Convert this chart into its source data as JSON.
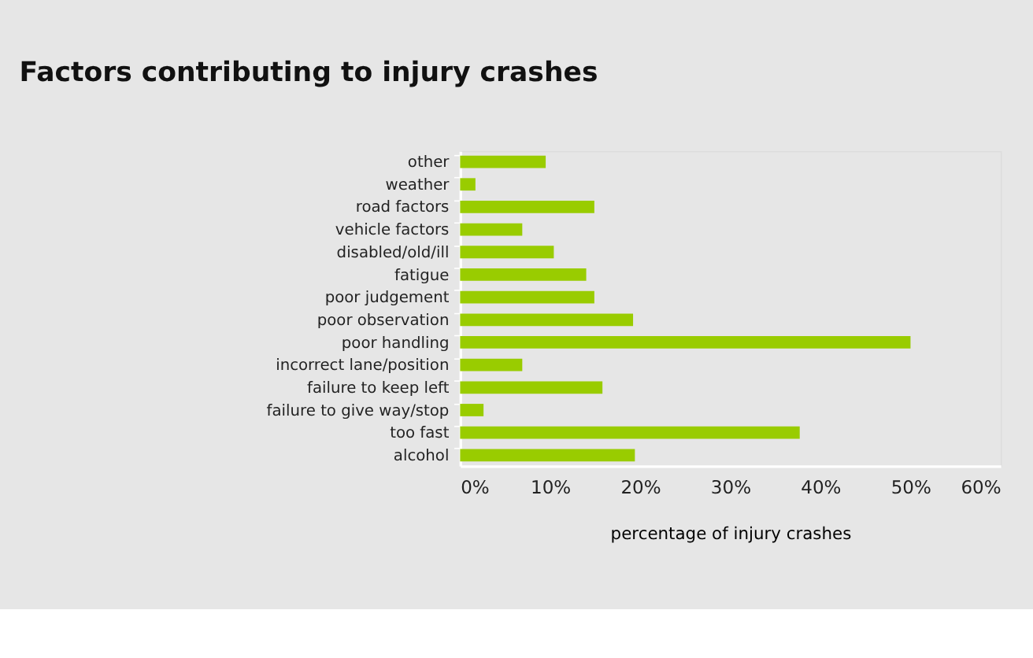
{
  "chart_data": {
    "type": "bar",
    "orientation": "horizontal",
    "title": "Factors contributing to injury crashes",
    "xlabel": "percentage of injury crashes",
    "categories": [
      "other",
      "weather",
      "road factors",
      "vehicle factors",
      "disabled/old/ill",
      "fatigue",
      "poor judgement",
      "poor observation",
      "poor handling",
      "incorrect lane/position",
      "failure to keep left",
      "failure to give way/stop",
      "too fast",
      "alcohol"
    ],
    "values": [
      9.5,
      1.7,
      14.9,
      6.9,
      10.4,
      14.0,
      14.9,
      19.2,
      50.0,
      6.9,
      15.8,
      2.6,
      37.7,
      19.4
    ],
    "color": "#99cc00",
    "xlim": [
      0,
      60
    ],
    "xticks": [
      {
        "value": 0,
        "label": "0%"
      },
      {
        "value": 10,
        "label": "10%"
      },
      {
        "value": 20,
        "label": "20%"
      },
      {
        "value": 30,
        "label": "30%"
      },
      {
        "value": 40,
        "label": "40%"
      },
      {
        "value": 50,
        "label": "50%"
      },
      {
        "value": 60,
        "label": "60%"
      }
    ],
    "grid": false
  }
}
